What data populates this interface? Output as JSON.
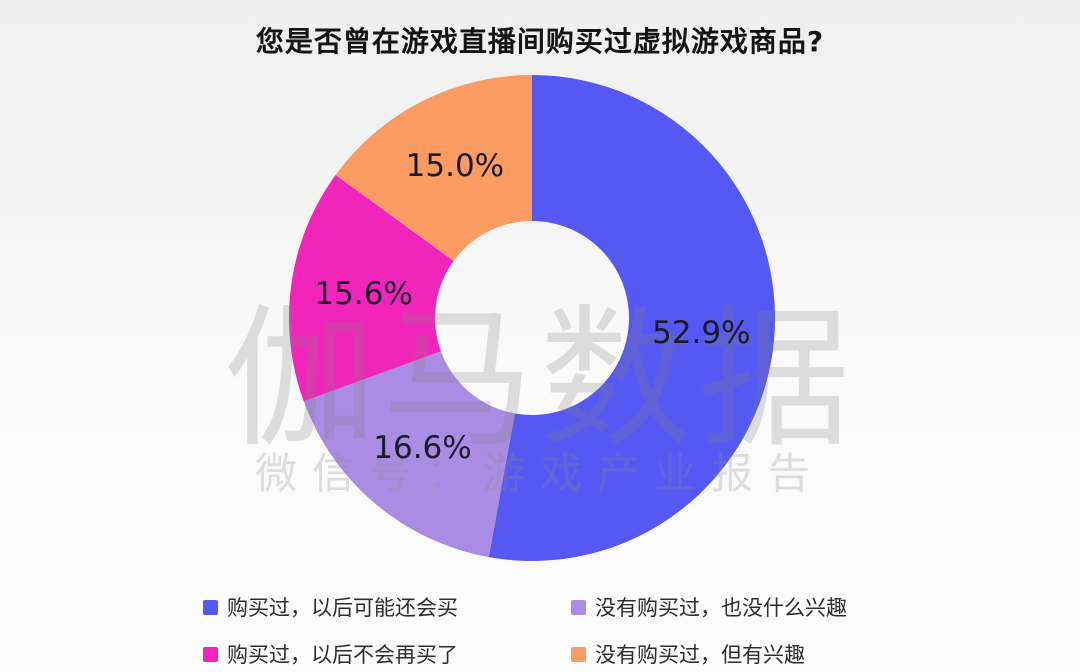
{
  "chart_data": {
    "type": "pie",
    "subtype": "donut",
    "title": "您是否曾在游戏直播间购买过虚拟游戏商品?",
    "start_angle_deg": 0,
    "direction": "clockwise",
    "legend_position": "bottom",
    "series": [
      {
        "name": "购买过，以后可能还会买",
        "value": 52.9,
        "label": "52.9%",
        "color": "#5558F2"
      },
      {
        "name": "没有购买过，也没什么兴趣",
        "value": 16.6,
        "label": "16.6%",
        "color": "#A98CE4"
      },
      {
        "name": "购买过，以后不会再买了",
        "value": 15.6,
        "label": "15.6%",
        "color": "#F124BC"
      },
      {
        "name": "没有购买过，但有兴趣",
        "value": 15.0,
        "label": "15.0%",
        "color": "#F99B62"
      }
    ]
  },
  "watermark": {
    "line1": "伽马数据",
    "line2": "微信号：游戏产业报告"
  },
  "colors": {
    "title_text": "#141414",
    "slice_label_text": "#1b1b28",
    "legend_text": "#2d2d2d",
    "background_top": "#efefef",
    "background_bottom": "#fdfdfd"
  }
}
